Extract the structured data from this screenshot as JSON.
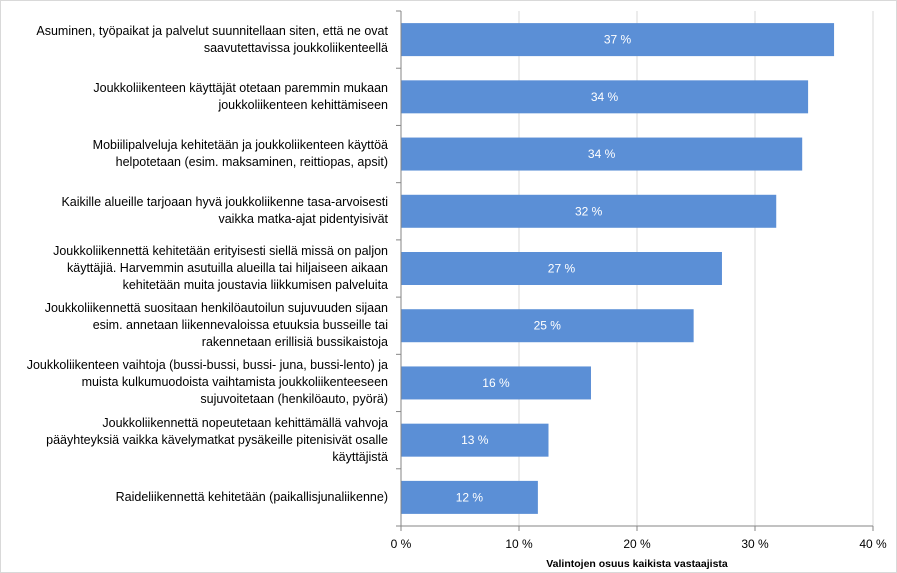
{
  "chart_data": {
    "type": "bar",
    "orientation": "horizontal",
    "categories": [
      "Asuminen, työpaikat ja palvelut suunnitellaan siten, että ne ovat\nsaavutettavissa joukkoliikenteellä",
      "Joukkoliikenteen käyttäjät otetaan paremmin mukaan\njoukkoliikenteen kehittämiseen",
      "Mobiilipalveluja kehitetään ja joukkoliikenteen käyttöä\nhelpotetaan (esim. maksaminen, reittiopas, apsit)",
      "Kaikille alueille tarjoaan hyvä joukkoliikenne tasa-arvoisesti\nvaikka matka-ajat pidentyisivät",
      "Joukkoliikennettä kehitetään erityisesti siellä missä on paljon\nkäyttäjiä. Harvemmin asutuilla alueilla tai hiljaiseen aikaan\nkehitetään muita joustavia liikkumisen palveluita",
      "Joukkoliikennettä suositaan henkilöautoilun sujuvuuden sijaan\nesim. annetaan liikennevaloissa etuuksia busseille tai\nrakennetaan erillisiä bussikaistoja",
      "Joukkoliikenteen vaihtoja (bussi-bussi, bussi- juna, bussi-lento) ja\nmuista kulkumuodoista vaihtamista joukkoliikenteeseen\nsujuvoitetaan (henkilöauto, pyörä)",
      "Joukkoliikennettä nopeutetaan kehittämällä vahvoja\npääyhteyksiä vaikka kävelymatkat pysäkeille pitenisivät osalle\nkäyttäjistä",
      "Raideliikennettä kehitetään (paikallisjunaliikenne)"
    ],
    "values": [
      36.7,
      34.5,
      34.0,
      31.8,
      27.2,
      24.8,
      16.1,
      12.5,
      11.6
    ],
    "data_labels": [
      "37 %",
      "34 %",
      "34 %",
      "32 %",
      "27 %",
      "25 %",
      "16 %",
      "13 %",
      "12 %"
    ],
    "xlim": [
      0,
      40
    ],
    "xticks": [
      0,
      10,
      20,
      30,
      40
    ],
    "xtick_labels": [
      "0 %",
      "10 %",
      "20 %",
      "30 %",
      "40 %"
    ],
    "xlabel": "Valintojen osuus kaikista vastaajista",
    "ylabel": "",
    "title": "",
    "grid": "vertical",
    "legend": "none",
    "bar_color": "#5b8fd6",
    "grid_color": "#d9d9d9",
    "label_color": "#ffffff"
  }
}
